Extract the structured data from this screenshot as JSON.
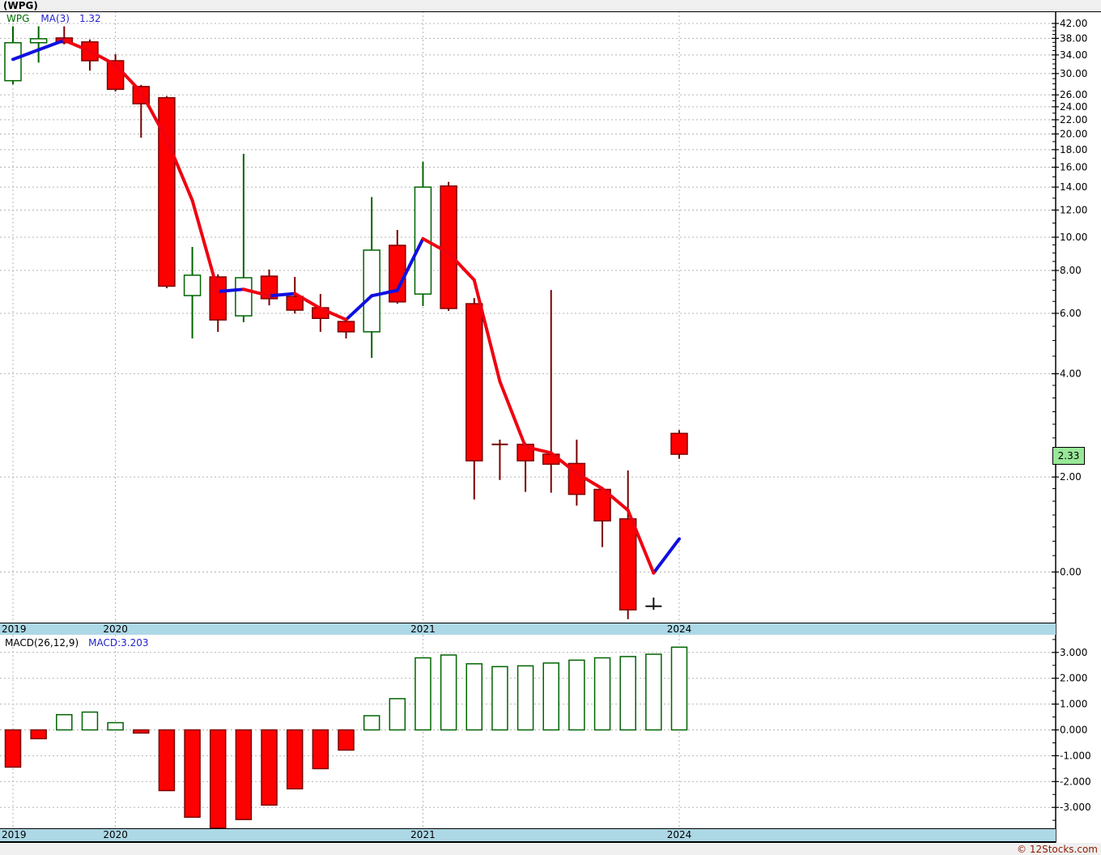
{
  "header": {
    "title": "(WPG)"
  },
  "legend": {
    "symbol": "WPG",
    "ma_label": "MA(3)",
    "ma_value": "1.32"
  },
  "macd_legend": {
    "label": "MACD(26,12,9)",
    "value_label": "MACD:3.203"
  },
  "price_badge": {
    "value": "2.33"
  },
  "footer": {
    "credit": "© 12Stocks.com"
  },
  "colors": {
    "candle_up_border": "#006400",
    "candle_up_fill": "#ffffff",
    "candle_down_fill": "#ff0000",
    "candle_down_border": "#7c0000",
    "doji_maroon": "#7a0000",
    "doji_black": "#111111",
    "ma_rising": "#1010e0",
    "ma_falling": "#f00010",
    "grid": "#b5b5b5",
    "axis": "#000000",
    "band_bg": "#add8e6",
    "badge_bg": "#98e898",
    "legend_green": "#007000",
    "legend_blue": "#2222cc",
    "footer_text": "#8b1a00"
  },
  "chart_data": {
    "type": "candlestick_with_macd_histogram",
    "title": "(WPG)",
    "price_scale": "log",
    "x_labels": [
      {
        "label": "2019",
        "index": 0
      },
      {
        "label": "2020",
        "index": 4
      },
      {
        "label": "2021",
        "index": 16
      },
      {
        "label": "2024",
        "index": 26
      }
    ],
    "candles": [
      {
        "o": 28.6,
        "h": 41.2,
        "l": 27.9,
        "c": 36.9,
        "t": "up"
      },
      {
        "o": 36.9,
        "h": 41.2,
        "l": 32.3,
        "c": 37.9,
        "t": "up"
      },
      {
        "o": 38.1,
        "h": 41.2,
        "l": 36.5,
        "c": 36.9,
        "t": "down"
      },
      {
        "o": 37.1,
        "h": 37.7,
        "l": 30.6,
        "c": 32.7,
        "t": "down"
      },
      {
        "o": 32.7,
        "h": 34.2,
        "l": 26.6,
        "c": 27.0,
        "t": "down"
      },
      {
        "o": 27.5,
        "h": 27.8,
        "l": 19.5,
        "c": 24.5,
        "t": "down"
      },
      {
        "o": 25.5,
        "h": 25.8,
        "l": 7.1,
        "c": 7.2,
        "t": "down"
      },
      {
        "o": 6.76,
        "h": 9.37,
        "l": 5.07,
        "c": 7.75,
        "t": "up"
      },
      {
        "o": 7.66,
        "h": 7.8,
        "l": 5.3,
        "c": 5.74,
        "t": "down"
      },
      {
        "o": 5.9,
        "h": 17.5,
        "l": 5.65,
        "c": 7.62,
        "t": "up"
      },
      {
        "o": 7.7,
        "h": 8.05,
        "l": 6.33,
        "c": 6.62,
        "t": "down"
      },
      {
        "o": 6.72,
        "h": 7.66,
        "l": 5.99,
        "c": 6.13,
        "t": "down"
      },
      {
        "o": 6.23,
        "h": 6.83,
        "l": 5.3,
        "c": 5.8,
        "t": "down"
      },
      {
        "o": 5.68,
        "h": 5.77,
        "l": 5.07,
        "c": 5.3,
        "t": "down"
      },
      {
        "o": 5.3,
        "h": 13.1,
        "l": 4.45,
        "c": 9.17,
        "t": "up"
      },
      {
        "o": 9.47,
        "h": 10.5,
        "l": 6.4,
        "c": 6.48,
        "t": "down"
      },
      {
        "o": 6.83,
        "h": 16.6,
        "l": 6.3,
        "c": 14.0,
        "t": "up"
      },
      {
        "o": 14.1,
        "h": 14.5,
        "l": 6.1,
        "c": 6.2,
        "t": "down"
      },
      {
        "o": 6.4,
        "h": 6.65,
        "l": 1.72,
        "c": 2.23,
        "t": "down"
      },
      {
        "o": 2.49,
        "h": 2.57,
        "l": 1.96,
        "c": 2.49,
        "t": "doji-maroon"
      },
      {
        "o": 2.49,
        "h": 2.52,
        "l": 1.81,
        "c": 2.23,
        "t": "down"
      },
      {
        "o": 2.33,
        "h": 7.02,
        "l": 1.8,
        "c": 2.18,
        "t": "down"
      },
      {
        "o": 2.19,
        "h": 2.57,
        "l": 1.65,
        "c": 1.78,
        "t": "down"
      },
      {
        "o": 1.84,
        "h": 1.86,
        "l": 1.25,
        "c": 1.49,
        "t": "down"
      },
      {
        "o": 1.51,
        "h": 2.09,
        "l": 0.77,
        "c": 0.82,
        "t": "down"
      },
      {
        "o": 0.84,
        "h": 0.89,
        "l": 0.82,
        "c": 0.84,
        "t": "doji-black"
      },
      {
        "o": 2.68,
        "h": 2.74,
        "l": 2.26,
        "c": 2.33,
        "t": "down"
      }
    ],
    "ma3_values": [
      33.0,
      35.2,
      37.5,
      34.9,
      31.8,
      26.5,
      19.3,
      12.8,
      6.95,
      7.05,
      6.75,
      6.85,
      6.2,
      5.75,
      6.75,
      7.0,
      9.9,
      9.0,
      7.5,
      3.8,
      2.45,
      2.35,
      2.05,
      1.85,
      1.6,
      1.05,
      1.32
    ],
    "ma3_color_rule": "blue when rising, red when falling",
    "price_axis": {
      "major_ticks": [
        {
          "label": "42.00",
          "price": 42
        },
        {
          "label": "38.00",
          "price": 38
        },
        {
          "label": "34.00",
          "price": 34
        },
        {
          "label": "30.00",
          "price": 30
        },
        {
          "label": "26.00",
          "price": 26
        },
        {
          "label": "24.00",
          "price": 24
        },
        {
          "label": "22.00",
          "price": 22
        },
        {
          "label": "20.00",
          "price": 20
        },
        {
          "label": "18.00",
          "price": 18
        },
        {
          "label": "16.00",
          "price": 16
        },
        {
          "label": "14.00",
          "price": 14
        },
        {
          "label": "12.00",
          "price": 12
        },
        {
          "label": "10.00",
          "price": 10
        },
        {
          "label": "8.00",
          "price": 8
        },
        {
          "label": "6.00",
          "price": 6
        },
        {
          "label": "4.00",
          "price": 4
        },
        {
          "label": "2.00",
          "price": 2
        },
        {
          "label": "0.00",
          "price": 1.057
        }
      ],
      "minor_tick_prices": [
        41,
        40,
        39,
        37,
        36,
        35,
        33,
        32,
        31,
        29,
        28,
        27,
        25,
        23,
        21,
        19,
        17,
        15,
        13,
        11,
        9.5,
        9,
        8.5,
        7.5,
        7,
        6.5,
        5.5,
        5,
        4.5,
        3.7,
        3.4,
        3.1,
        2.85,
        2.6,
        2.4,
        2.2,
        1.85,
        1.7,
        1.55,
        1.43,
        1.3,
        1.18,
        0.95,
        0.88,
        0.8
      ]
    },
    "macd": {
      "params": "26,12,9",
      "last_value": 3.203,
      "values": [
        -1.44,
        -0.34,
        0.59,
        0.69,
        0.28,
        -0.12,
        -2.35,
        -3.38,
        -3.8,
        -3.47,
        -2.91,
        -2.28,
        -1.5,
        -0.78,
        0.55,
        1.21,
        2.79,
        2.9,
        2.56,
        2.45,
        2.48,
        2.59,
        2.7,
        2.79,
        2.84,
        2.93,
        3.203
      ],
      "axis_major_ticks": [
        {
          "label": "3.000",
          "value": 3
        },
        {
          "label": "2.000",
          "value": 2
        },
        {
          "label": "1.000",
          "value": 1
        },
        {
          "label": "0.000",
          "value": 0
        },
        {
          "label": "-1.000",
          "value": -1
        },
        {
          "label": "-2.000",
          "value": -2
        },
        {
          "label": "-3.000",
          "value": -3
        }
      ],
      "axis_minor_tick_values": [
        3.5,
        2.5,
        1.5,
        0.5,
        -0.5,
        -1.5,
        -2.5,
        -3.5
      ]
    }
  }
}
